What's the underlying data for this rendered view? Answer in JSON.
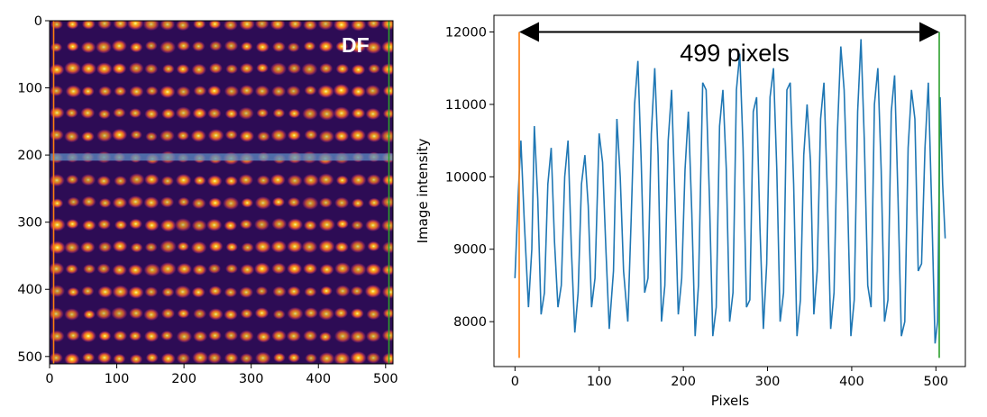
{
  "chart_data": [
    {
      "type": "heatmap",
      "title": "",
      "annotation": "DF",
      "xlabel": "",
      "ylabel": "",
      "xlim": [
        0,
        511
      ],
      "ylim": [
        511,
        0
      ],
      "xticks": [
        0,
        100,
        200,
        300,
        400,
        500
      ],
      "yticks": [
        0,
        100,
        200,
        300,
        400,
        500
      ],
      "colormap": "inferno",
      "atom_columns": 22,
      "atom_rows": 16,
      "line_profile_y": 203,
      "marker_lines": [
        {
          "x": 6,
          "color": "#ff7f0e"
        },
        {
          "x": 505,
          "color": "#2ca02c"
        }
      ],
      "profile_band_color": "#5b8cc4"
    },
    {
      "type": "line",
      "title": "",
      "xlabel": "Pixels",
      "ylabel": "Image intensity",
      "xlim": [
        -25,
        535
      ],
      "ylim": [
        7380,
        12230
      ],
      "xticks": [
        0,
        100,
        200,
        300,
        400,
        500
      ],
      "yticks": [
        8000,
        9000,
        10000,
        11000,
        12000
      ],
      "grid": false,
      "series": [
        {
          "color": "#1f77b4",
          "x": [
            0,
            4,
            7,
            11,
            16,
            20,
            23,
            27,
            31,
            35,
            39,
            43,
            47,
            51,
            55,
            59,
            63,
            67,
            71,
            75,
            79,
            83,
            87,
            91,
            95,
            100,
            104,
            108,
            112,
            117,
            121,
            125,
            129,
            134,
            138,
            142,
            146,
            150,
            154,
            158,
            162,
            166,
            170,
            174,
            178,
            182,
            186,
            190,
            194,
            198,
            202,
            206,
            210,
            214,
            218,
            223,
            227,
            231,
            235,
            239,
            243,
            247,
            251,
            255,
            259,
            263,
            267,
            271,
            275,
            279,
            283,
            287,
            291,
            295,
            299,
            303,
            307,
            311,
            315,
            319,
            323,
            327,
            331,
            335,
            339,
            343,
            347,
            351,
            355,
            359,
            363,
            367,
            371,
            375,
            379,
            383,
            387,
            391,
            395,
            399,
            403,
            407,
            411,
            415,
            419,
            423,
            427,
            431,
            435,
            439,
            443,
            447,
            451,
            455,
            459,
            463,
            467,
            471,
            475,
            479,
            483,
            487,
            491,
            495,
            499,
            502,
            505,
            508,
            511
          ],
          "values": [
            8600,
            9800,
            10500,
            9400,
            8200,
            9000,
            10700,
            9700,
            8100,
            8400,
            9900,
            10400,
            9100,
            8200,
            8500,
            10000,
            10500,
            9000,
            7850,
            8400,
            9900,
            10300,
            9600,
            8200,
            8600,
            10600,
            10200,
            9000,
            7900,
            8700,
            10800,
            10000,
            8700,
            8000,
            9400,
            11000,
            11600,
            10200,
            8400,
            8600,
            10600,
            11500,
            10300,
            8000,
            8500,
            10500,
            11200,
            9700,
            8100,
            8600,
            10100,
            10900,
            9500,
            7800,
            8500,
            11300,
            11200,
            9700,
            7800,
            8200,
            10700,
            11200,
            10100,
            8000,
            8400,
            11200,
            11700,
            10400,
            8200,
            8300,
            10900,
            11100,
            9300,
            7900,
            8800,
            11100,
            11500,
            10100,
            8000,
            8400,
            11200,
            11300,
            9900,
            7800,
            8300,
            10300,
            11000,
            10200,
            8100,
            8700,
            10800,
            11300,
            9800,
            7900,
            8400,
            10600,
            11800,
            11200,
            9700,
            7800,
            8300,
            10900,
            11900,
            10500,
            8500,
            8200,
            11000,
            11500,
            10100,
            8000,
            8300,
            10900,
            11400,
            9700,
            7800,
            8000,
            10400,
            11200,
            10800,
            8700,
            8800,
            10400,
            11300,
            9600,
            7700,
            8000,
            11100,
            9900,
            9150
          ]
        }
      ],
      "markers": [
        {
          "x": 5,
          "y0": 7500,
          "y1": 12000,
          "color": "#ff7f0e"
        },
        {
          "x": 504,
          "y0": 7500,
          "y1": 12000,
          "color": "#2ca02c"
        }
      ],
      "annotation": {
        "text": "499 pixels",
        "arrow_x": [
          5,
          504
        ],
        "arrow_y": 12000
      }
    }
  ]
}
